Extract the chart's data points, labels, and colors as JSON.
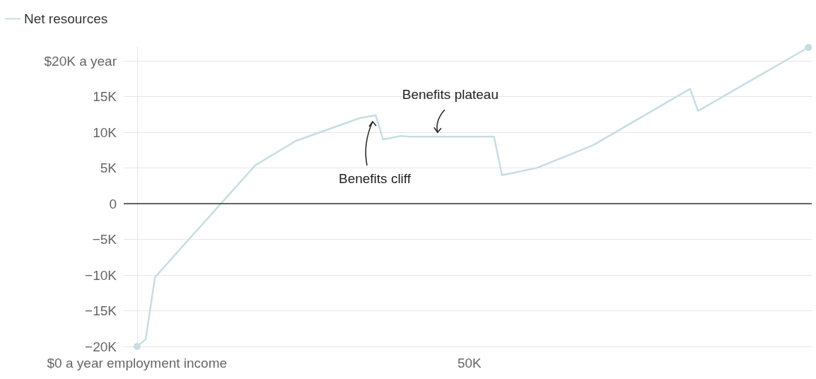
{
  "chart_data": {
    "type": "line",
    "x": [
      0,
      1300,
      2700,
      17800,
      23900,
      33500,
      35900,
      37000,
      39700,
      41000,
      53700,
      54900,
      60100,
      68600,
      83200,
      84400,
      101000
    ],
    "series": [
      {
        "name": "Net resources",
        "color": "#c6dde3",
        "values": [
          -20000,
          -19000,
          -10300,
          5400,
          8800,
          12000,
          12400,
          9000,
          9500,
          9400,
          9400,
          4000,
          5000,
          8200,
          16100,
          13000,
          21900
        ]
      }
    ],
    "xlim": [
      -2000,
      101500
    ],
    "xticks": [
      {
        "value": 0,
        "label": "$0 a year employment income"
      },
      {
        "value": 50000,
        "label": "50K"
      }
    ],
    "ylim": [
      -20000,
      22000
    ],
    "yticks": [
      {
        "value": -20000,
        "label": "−20K"
      },
      {
        "value": -15000,
        "label": "−15K"
      },
      {
        "value": -10000,
        "label": "−10K"
      },
      {
        "value": -5000,
        "label": "−5K"
      },
      0,
      {
        "value": 5000,
        "label": "5K"
      },
      {
        "value": 10000,
        "label": "10K"
      },
      {
        "value": 15000,
        "label": "15K"
      },
      {
        "value": 20000,
        "label": "$20K a year"
      }
    ],
    "grid": "y",
    "legend": "top left",
    "line_style": "solid",
    "ref_lines": [
      {
        "axis": "y",
        "value": 0,
        "color": "#333333"
      }
    ],
    "annotations": [
      "Benefits cliff",
      {
        "text": "Benefits plateau",
        "x": 45000,
        "y": 9400
      }
    ]
  }
}
